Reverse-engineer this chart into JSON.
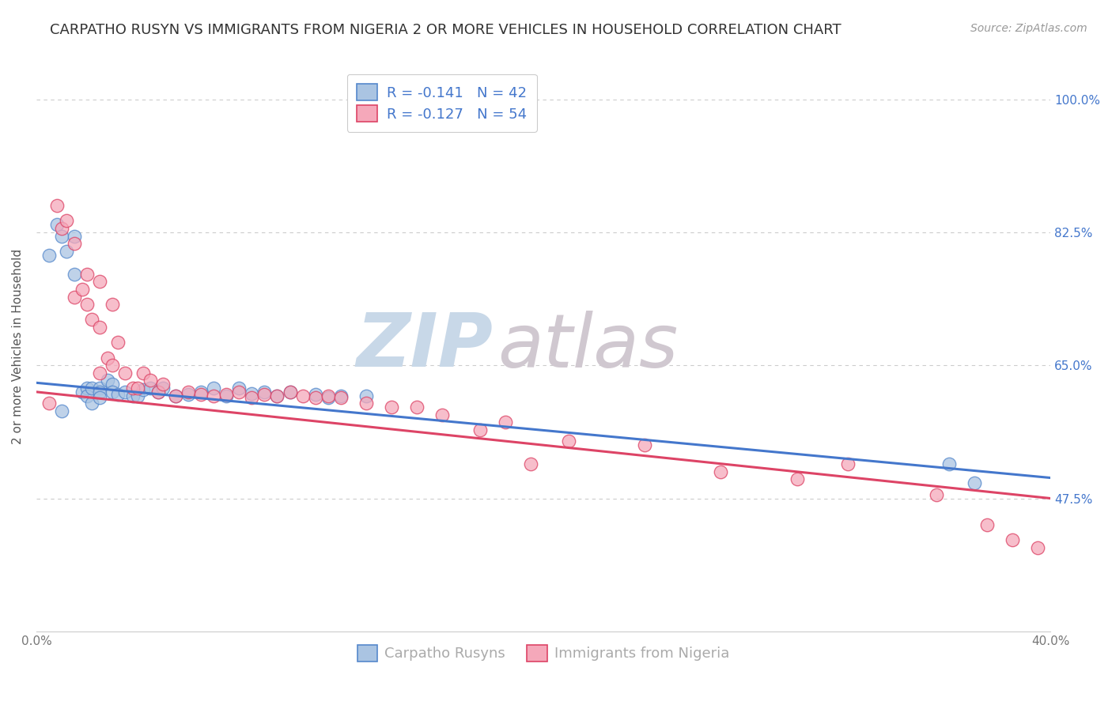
{
  "title": "CARPATHO RUSYN VS IMMIGRANTS FROM NIGERIA 2 OR MORE VEHICLES IN HOUSEHOLD CORRELATION CHART",
  "source": "Source: ZipAtlas.com",
  "ylabel": "2 or more Vehicles in Household",
  "xmin": 0.0,
  "xmax": 0.4,
  "ymin": 0.3,
  "ymax": 1.05,
  "yticks": [
    0.475,
    0.65,
    0.825,
    1.0
  ],
  "ytick_labels": [
    "47.5%",
    "65.0%",
    "82.5%",
    "100.0%"
  ],
  "xticks": [
    0.0,
    0.1,
    0.2,
    0.3,
    0.4
  ],
  "xtick_labels": [
    "0.0%",
    "",
    "",
    "",
    "40.0%"
  ],
  "blue_R": -0.141,
  "blue_N": 42,
  "pink_R": -0.127,
  "pink_N": 54,
  "legend_label_blue": "Carpatho Rusyns",
  "legend_label_pink": "Immigrants from Nigeria",
  "watermark_part1": "ZIP",
  "watermark_part2": "atlas",
  "blue_scatter_x": [
    0.005,
    0.008,
    0.01,
    0.01,
    0.012,
    0.015,
    0.015,
    0.018,
    0.02,
    0.02,
    0.022,
    0.022,
    0.025,
    0.025,
    0.025,
    0.028,
    0.03,
    0.03,
    0.032,
    0.035,
    0.038,
    0.04,
    0.042,
    0.045,
    0.048,
    0.05,
    0.055,
    0.06,
    0.065,
    0.07,
    0.075,
    0.08,
    0.085,
    0.09,
    0.095,
    0.1,
    0.11,
    0.115,
    0.12,
    0.13,
    0.36,
    0.37
  ],
  "blue_scatter_y": [
    0.795,
    0.835,
    0.82,
    0.59,
    0.8,
    0.82,
    0.77,
    0.615,
    0.62,
    0.61,
    0.62,
    0.6,
    0.62,
    0.615,
    0.608,
    0.63,
    0.625,
    0.615,
    0.612,
    0.615,
    0.61,
    0.61,
    0.618,
    0.62,
    0.615,
    0.62,
    0.61,
    0.612,
    0.615,
    0.62,
    0.61,
    0.62,
    0.613,
    0.615,
    0.61,
    0.615,
    0.612,
    0.608,
    0.61,
    0.61,
    0.52,
    0.495
  ],
  "pink_scatter_x": [
    0.005,
    0.008,
    0.01,
    0.012,
    0.015,
    0.015,
    0.018,
    0.02,
    0.02,
    0.022,
    0.025,
    0.025,
    0.025,
    0.028,
    0.03,
    0.03,
    0.032,
    0.035,
    0.038,
    0.04,
    0.042,
    0.045,
    0.048,
    0.05,
    0.055,
    0.06,
    0.065,
    0.07,
    0.075,
    0.08,
    0.085,
    0.09,
    0.095,
    0.1,
    0.105,
    0.11,
    0.115,
    0.12,
    0.13,
    0.14,
    0.15,
    0.16,
    0.175,
    0.185,
    0.195,
    0.21,
    0.24,
    0.27,
    0.3,
    0.32,
    0.355,
    0.375,
    0.385,
    0.395
  ],
  "pink_scatter_y": [
    0.6,
    0.86,
    0.83,
    0.84,
    0.81,
    0.74,
    0.75,
    0.77,
    0.73,
    0.71,
    0.76,
    0.7,
    0.64,
    0.66,
    0.73,
    0.65,
    0.68,
    0.64,
    0.62,
    0.62,
    0.64,
    0.63,
    0.615,
    0.625,
    0.61,
    0.615,
    0.612,
    0.61,
    0.612,
    0.615,
    0.608,
    0.612,
    0.61,
    0.615,
    0.61,
    0.608,
    0.61,
    0.608,
    0.6,
    0.595,
    0.595,
    0.585,
    0.565,
    0.575,
    0.52,
    0.55,
    0.545,
    0.51,
    0.5,
    0.52,
    0.48,
    0.44,
    0.42,
    0.41
  ],
  "blue_color": "#aac4e2",
  "pink_color": "#f5a8ba",
  "blue_line_color": "#4477cc",
  "pink_line_color": "#dd4466",
  "blue_edge_color": "#5588cc",
  "pink_edge_color": "#dd4466",
  "background_color": "#ffffff",
  "grid_color": "#cccccc",
  "title_color": "#333333",
  "source_color": "#999999",
  "axis_color": "#555555",
  "tick_color_y": "#4477cc",
  "tick_color_x": "#777777",
  "title_fontsize": 13,
  "source_fontsize": 10,
  "axis_label_fontsize": 11,
  "tick_fontsize": 11,
  "legend_fontsize": 13,
  "watermark_color_zip": "#c8d8e8",
  "watermark_color_atlas": "#d0c8d0"
}
